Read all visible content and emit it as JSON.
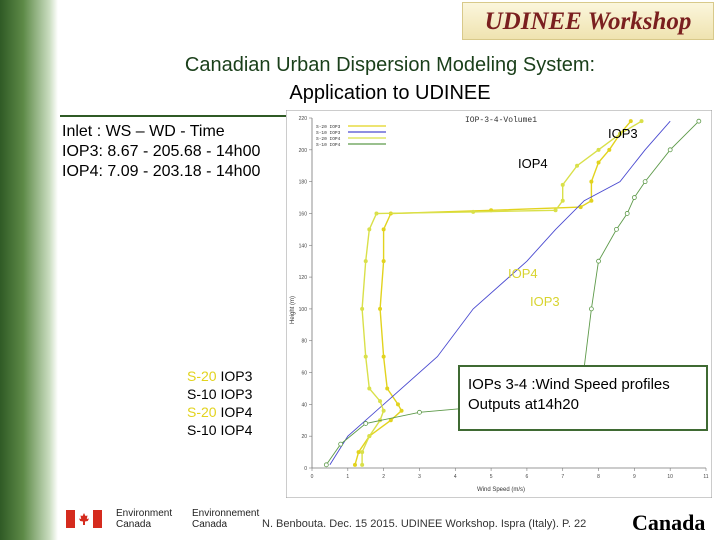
{
  "header": {
    "workshop": "UDINEE Workshop",
    "title_line1": "Canadian Urban Dispersion Modeling System:",
    "title_line2": "Application to UDINEE"
  },
  "inlet": {
    "line1": "Inlet : WS – WD - Time",
    "line2": "IOP3: 8.67 - 205.68 - 14h00",
    "line3": "IOP4: 7.09 - 203.18 - 14h00"
  },
  "legend": {
    "item1": {
      "name": "S-20",
      "iop": "IOP3"
    },
    "item2": {
      "name": "S-10",
      "iop": "IOP3"
    },
    "item3": {
      "name": "S-20",
      "iop": "IOP4"
    },
    "item4": {
      "name": "S-10",
      "iop": "IOP4"
    }
  },
  "annotations": {
    "top_iop3": "IOP3",
    "top_iop4": "IOP4",
    "mid_iop4": "IOP4",
    "mid_iop3": "IOP3"
  },
  "callout": {
    "line1": "IOPs 3-4 :Wind Speed profiles",
    "line2": "Outputs at14h20"
  },
  "footer": {
    "text": "N. Benbouta. Dec. 15 2015. UDINEE Workshop. Ispra (Italy). P. 22",
    "canada": "Canada",
    "env_en_1": "Environment",
    "env_en_2": "Canada",
    "env_fr_1": "Environnement",
    "env_fr_2": "Canada"
  },
  "colors": {
    "sidebar": "#4a7a3a",
    "workshop_title": "#7a1f1f",
    "title": "#1a3f1a",
    "s20_iop3": "#e2d31e",
    "s10_iop3": "#4a4ad0",
    "s20_iop4": "#d9e04a",
    "s10_iop4": "#5e9a4a"
  },
  "chart_data": {
    "type": "line",
    "title": "IOP-3-4-Volume1",
    "xlabel": "Wind Speed (m/s)",
    "ylabel": "Height (m)",
    "xlim": [
      0,
      11
    ],
    "ylim": [
      0,
      220
    ],
    "series": [
      {
        "name": "S-20 IOP3",
        "points": [
          [
            1.2,
            2
          ],
          [
            1.3,
            10
          ],
          [
            1.6,
            20
          ],
          [
            2.2,
            30
          ],
          [
            2.5,
            36
          ],
          [
            2.4,
            40
          ],
          [
            2.1,
            50
          ],
          [
            2.0,
            70
          ],
          [
            1.9,
            100
          ],
          [
            2.0,
            130
          ],
          [
            2.0,
            150
          ],
          [
            2.2,
            160
          ],
          [
            5.0,
            162
          ],
          [
            7.5,
            164
          ],
          [
            7.8,
            168
          ],
          [
            7.8,
            180
          ],
          [
            8.0,
            192
          ],
          [
            8.3,
            200
          ],
          [
            8.6,
            210
          ],
          [
            8.9,
            218
          ]
        ]
      },
      {
        "name": "S-10 IOP3",
        "points": [
          [
            0.5,
            2
          ],
          [
            1.0,
            20
          ],
          [
            2.0,
            40
          ],
          [
            3.5,
            70
          ],
          [
            4.5,
            100
          ],
          [
            6.0,
            130
          ],
          [
            6.8,
            150
          ],
          [
            7.6,
            168
          ],
          [
            8.6,
            180
          ],
          [
            9.3,
            200
          ],
          [
            10.0,
            218
          ]
        ]
      },
      {
        "name": "S-20 IOP4",
        "points": [
          [
            1.4,
            2
          ],
          [
            1.4,
            10
          ],
          [
            1.6,
            20
          ],
          [
            1.9,
            30
          ],
          [
            2.0,
            36
          ],
          [
            1.9,
            42
          ],
          [
            1.6,
            50
          ],
          [
            1.5,
            70
          ],
          [
            1.4,
            100
          ],
          [
            1.5,
            130
          ],
          [
            1.6,
            150
          ],
          [
            1.8,
            160
          ],
          [
            4.5,
            161
          ],
          [
            6.8,
            162
          ],
          [
            7.0,
            168
          ],
          [
            7.0,
            178
          ],
          [
            7.4,
            190
          ],
          [
            8.0,
            200
          ],
          [
            8.6,
            210
          ],
          [
            9.2,
            218
          ]
        ]
      },
      {
        "name": "S-10 IOP4",
        "points": [
          [
            0.4,
            2
          ],
          [
            0.8,
            15
          ],
          [
            1.5,
            28
          ],
          [
            3.0,
            35
          ],
          [
            5.5,
            40
          ],
          [
            7.5,
            45
          ],
          [
            7.8,
            100
          ],
          [
            8.0,
            130
          ],
          [
            8.5,
            150
          ],
          [
            8.8,
            160
          ],
          [
            9.0,
            170
          ],
          [
            9.3,
            180
          ],
          [
            10.0,
            200
          ],
          [
            10.8,
            218
          ]
        ]
      }
    ]
  }
}
